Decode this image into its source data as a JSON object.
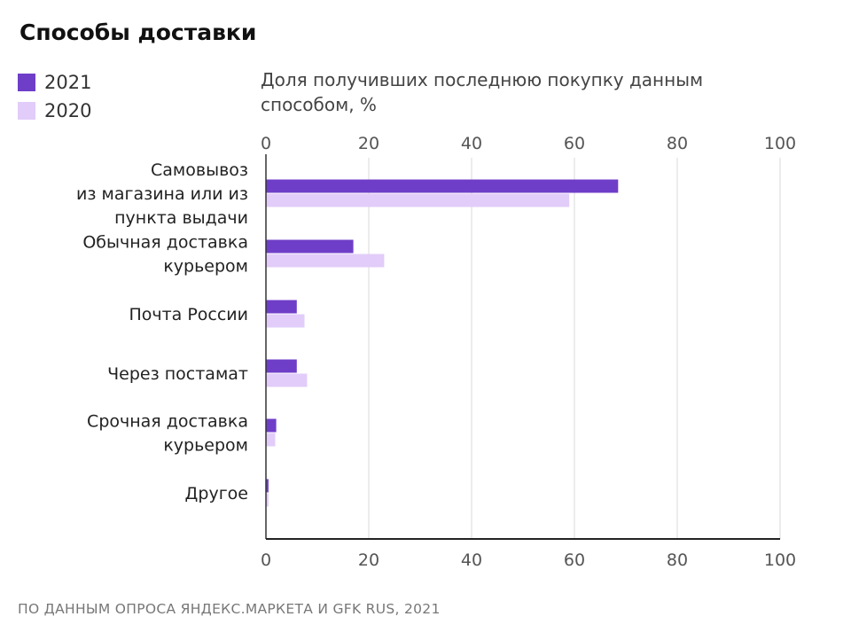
{
  "header": {
    "title": "Способы доставки"
  },
  "legend": [
    {
      "label": "2021",
      "color": "#6f3ec8"
    },
    {
      "label": "2020",
      "color": "#e2ccf9"
    }
  ],
  "subtitle": "Доля получивших последнюю покупку данным способом, %",
  "footer": {
    "source": "ПО ДАННЫМ ОПРОСА ЯНДЕКС.МАРКЕТА И GFK RUS, 2021"
  },
  "chart_data": {
    "type": "bar",
    "orientation": "horizontal",
    "title": "Способы доставки",
    "xlabel": "Доля получивших последнюю покупку данным способом, %",
    "ylabel": "",
    "xlim": [
      0,
      100
    ],
    "ticks": [
      "0",
      "20",
      "40",
      "60",
      "80",
      "100"
    ],
    "categories": [
      [
        "Самовывоз",
        "из магазина или из",
        "пункта выдачи"
      ],
      [
        "Обычная доставка",
        "курьером"
      ],
      [
        "Почта России"
      ],
      [
        "Через постамат"
      ],
      [
        "Срочная доставка",
        "курьером"
      ],
      [
        "Другое"
      ]
    ],
    "series": [
      {
        "name": "2021",
        "color": "#6f3ec8",
        "values": [
          68.5,
          17,
          6,
          6,
          2,
          0.5
        ]
      },
      {
        "name": "2020",
        "color": "#e2ccf9",
        "values": [
          59,
          23,
          7.5,
          8,
          1.8,
          0.5
        ]
      }
    ],
    "grid": true,
    "legend_position": "top-left"
  }
}
